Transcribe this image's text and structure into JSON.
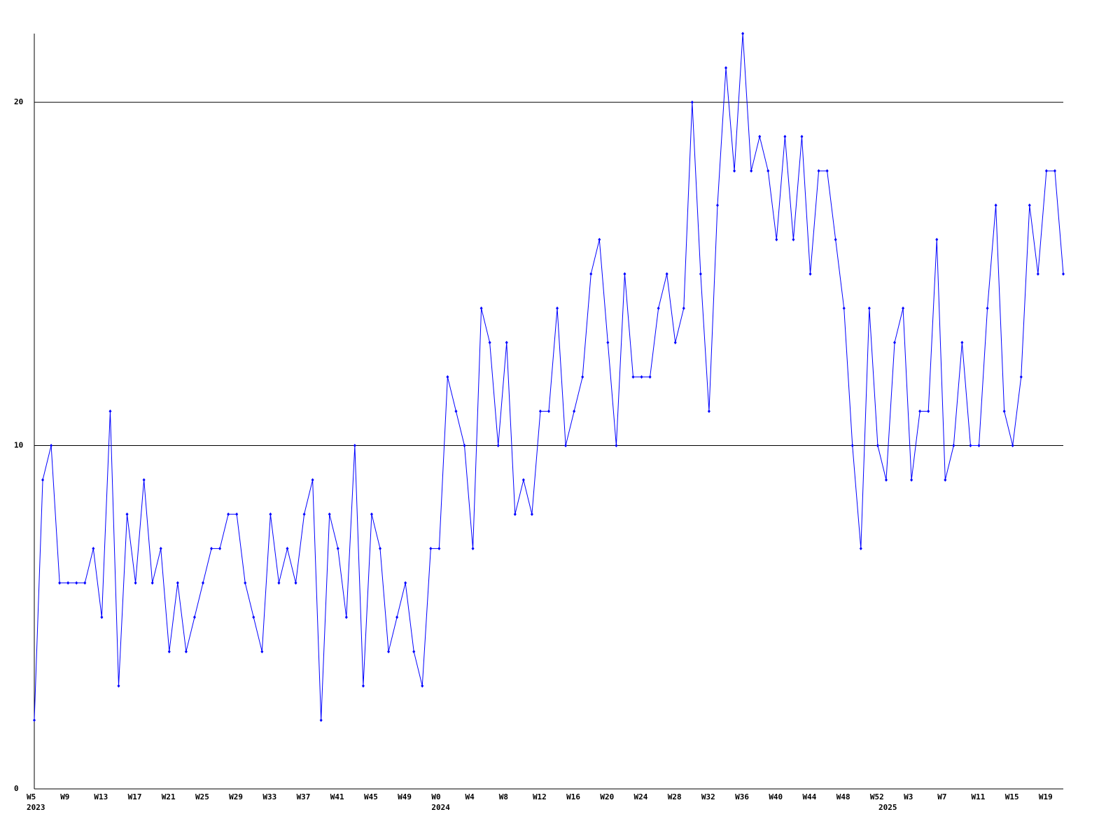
{
  "chart_data": {
    "type": "line",
    "categories": [
      "W5",
      null,
      null,
      null,
      "W9",
      null,
      null,
      null,
      "W13",
      null,
      null,
      null,
      "W17",
      null,
      null,
      null,
      "W21",
      null,
      null,
      null,
      "W25",
      null,
      null,
      null,
      "W29",
      null,
      null,
      null,
      "W33",
      null,
      null,
      null,
      "W37",
      null,
      null,
      null,
      "W41",
      null,
      null,
      null,
      "W45",
      null,
      null,
      null,
      "W49",
      null,
      null,
      null,
      "W0",
      null,
      null,
      null,
      "W4",
      null,
      null,
      null,
      "W8",
      null,
      null,
      null,
      "W12",
      null,
      null,
      null,
      "W16",
      null,
      null,
      null,
      "W20",
      null,
      null,
      null,
      "W24",
      null,
      null,
      null,
      "W28",
      null,
      null,
      null,
      "W32",
      null,
      null,
      null,
      "W36",
      null,
      null,
      null,
      "W40",
      null,
      null,
      null,
      "W44",
      null,
      null,
      null,
      "W48",
      null,
      null,
      null,
      "W52",
      null,
      null,
      null,
      "W3",
      null,
      null,
      null,
      "W7",
      null,
      null,
      null,
      "W11",
      null,
      null,
      null,
      "W15",
      null,
      null,
      null,
      "W19",
      null,
      null
    ],
    "category_years": [
      "2023",
      null,
      null,
      null,
      null,
      null,
      null,
      null,
      null,
      null,
      null,
      null,
      null,
      null,
      null,
      null,
      null,
      null,
      null,
      null,
      null,
      null,
      null,
      null,
      null,
      null,
      null,
      null,
      null,
      null,
      null,
      null,
      null,
      null,
      null,
      null,
      null,
      null,
      null,
      null,
      null,
      null,
      null,
      null,
      null,
      null,
      null,
      null,
      "2024",
      null,
      null,
      null,
      null,
      null,
      null,
      null,
      null,
      null,
      null,
      null,
      null,
      null,
      null,
      null,
      null,
      null,
      null,
      null,
      null,
      null,
      null,
      null,
      null,
      null,
      null,
      null,
      null,
      null,
      null,
      null,
      null,
      null,
      null,
      null,
      null,
      null,
      null,
      null,
      null,
      null,
      null,
      null,
      null,
      null,
      null,
      null,
      null,
      null,
      null,
      null,
      null,
      "2025",
      null,
      null,
      null,
      null,
      null,
      null,
      null,
      null,
      null,
      null,
      null,
      null,
      null,
      null,
      null,
      null,
      null,
      null,
      null,
      null,
      null
    ],
    "series": [
      {
        "color": "#0000ff",
        "values": [
          2,
          9,
          10,
          6,
          6,
          6,
          6,
          7,
          5,
          11,
          3,
          8,
          6,
          9,
          6,
          7,
          4,
          6,
          4,
          5,
          6,
          7,
          7,
          8,
          8,
          6,
          5,
          4,
          8,
          6,
          7,
          6,
          8,
          9,
          2,
          8,
          7,
          5,
          10,
          3,
          8,
          7,
          4,
          5,
          6,
          4,
          3,
          7,
          7,
          12,
          11,
          10,
          7,
          14,
          13,
          10,
          13,
          8,
          9,
          8,
          11,
          11,
          14,
          10,
          11,
          12,
          15,
          16,
          13,
          10,
          15,
          12,
          12,
          12,
          14,
          15,
          13,
          14,
          20,
          15,
          11,
          17,
          21,
          18,
          22,
          18,
          19,
          18,
          16,
          19,
          16,
          19,
          15,
          18,
          18,
          16,
          14,
          10,
          7,
          14,
          10,
          9,
          13,
          14,
          9,
          11,
          11,
          16,
          9,
          10,
          13,
          10,
          10,
          14,
          17,
          11,
          10,
          12,
          17,
          15,
          18,
          18,
          15
        ]
      }
    ],
    "ylim": [
      0,
      22
    ],
    "yticks": [
      0,
      10,
      20
    ],
    "grid": true
  }
}
